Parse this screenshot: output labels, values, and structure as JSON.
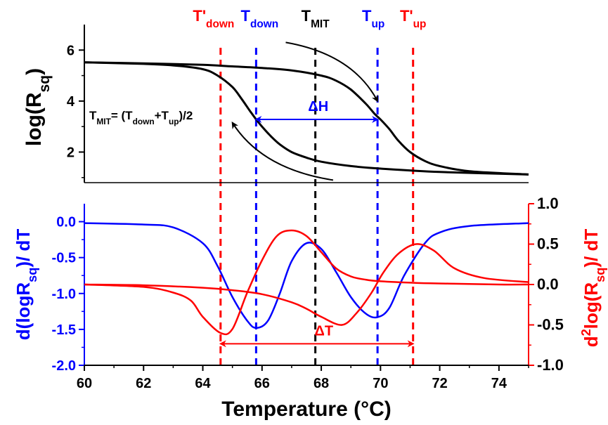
{
  "chart_data": [
    {
      "type": "line",
      "panel": "top",
      "ylabel": {
        "base": "log(R",
        "sub": "sq",
        "end": ")"
      },
      "xlim": [
        60,
        75
      ],
      "ylim": [
        0.8,
        7.0
      ],
      "yticks": [
        2,
        4,
        6
      ],
      "series": [
        {
          "x": [
            60,
            62,
            63,
            64,
            64.5,
            65,
            65.3,
            65.6,
            65.8,
            66,
            66.3,
            66.6,
            67,
            67.5,
            68,
            69,
            70,
            72,
            75
          ],
          "y": [
            5.52,
            5.46,
            5.4,
            5.25,
            5.0,
            4.55,
            4.1,
            3.6,
            3.28,
            3.0,
            2.62,
            2.3,
            2.0,
            1.78,
            1.62,
            1.45,
            1.35,
            1.22,
            1.12
          ]
        },
        {
          "x": [
            60,
            62,
            64,
            65,
            66,
            67,
            68,
            68.5,
            69,
            69.5,
            69.8,
            70,
            70.3,
            70.6,
            71,
            71.5,
            72,
            73,
            75
          ],
          "y": [
            5.52,
            5.48,
            5.42,
            5.36,
            5.3,
            5.2,
            5.0,
            4.8,
            4.45,
            3.9,
            3.5,
            3.28,
            2.9,
            2.45,
            2.0,
            1.65,
            1.45,
            1.25,
            1.12
          ]
        }
      ],
      "arrows": [
        {
          "from": [
            66.8,
            6.3
          ],
          "to": [
            69.9,
            4.0
          ],
          "color": "#000000"
        },
        {
          "from": [
            68.4,
            0.9
          ],
          "to": [
            65.0,
            3.15
          ],
          "color": "#000000"
        },
        {
          "from": [
            65.8,
            3.28
          ],
          "to": [
            69.9,
            3.28
          ],
          "color": "#0000ff",
          "label": "ΔH"
        }
      ],
      "annotation": {
        "pre": "T",
        "sub1": "MIT",
        "mid1": "= (T",
        "sub2": "down",
        "mid2": "+T",
        "sub3": "up",
        "end": ")/2"
      }
    },
    {
      "type": "line",
      "panel": "bottom",
      "xlabel": "Temperature (°C)",
      "xlim": [
        60,
        75
      ],
      "xticks": [
        60,
        62,
        64,
        66,
        68,
        70,
        72,
        74
      ],
      "ylabel_left": {
        "pre": "d(logR",
        "sub": "sq",
        "end": ")/ dT"
      },
      "ylabel_right": {
        "pre": "d",
        "sup": "2",
        "mid": "log(R",
        "sub": "sq",
        "end": ")/ dT"
      },
      "ylim_left": [
        -2.0,
        0.25
      ],
      "yticks_left": [
        "0.0",
        "-0.5",
        "-1.0",
        "-1.5",
        "-2.0"
      ],
      "ylim_right": [
        -1.0,
        1.0
      ],
      "yticks_right": [
        "1.0",
        "0.5",
        "0.0",
        "-0.5",
        "-1.0"
      ],
      "series": [
        {
          "axis": "left",
          "color": "#0000ff",
          "x": [
            60,
            62,
            63,
            64,
            64.5,
            65,
            65.5,
            65.8,
            66.2,
            66.6,
            67,
            67.5,
            68,
            68.5,
            69,
            69.5,
            69.9,
            70.3,
            70.8,
            71.5,
            72,
            73,
            75
          ],
          "y": [
            -0.02,
            -0.04,
            -0.08,
            -0.3,
            -0.62,
            -1.05,
            -1.38,
            -1.48,
            -1.38,
            -1.0,
            -0.55,
            -0.3,
            -0.38,
            -0.7,
            -1.05,
            -1.28,
            -1.33,
            -1.2,
            -0.75,
            -0.3,
            -0.15,
            -0.06,
            -0.02
          ]
        },
        {
          "axis": "right",
          "color": "#ff0000",
          "x": [
            60,
            62,
            63,
            63.6,
            64,
            64.6,
            65,
            65.5,
            66,
            66.5,
            67,
            67.5,
            68,
            68.5,
            69,
            69.5,
            70,
            71.2,
            72.5,
            74,
            75
          ],
          "y": [
            0.0,
            -0.03,
            -0.1,
            -0.2,
            -0.4,
            -0.6,
            -0.55,
            -0.1,
            0.3,
            0.6,
            0.67,
            0.6,
            0.4,
            0.2,
            0.1,
            0.06,
            0.04,
            0.02,
            0.01,
            0.0,
            0.0
          ]
        },
        {
          "axis": "right",
          "color": "#ff0000",
          "x": [
            60,
            62,
            64,
            65,
            66,
            67,
            67.5,
            68,
            68.7,
            69.2,
            69.7,
            70.1,
            70.6,
            71.2,
            71.8,
            72.5,
            73.5,
            75
          ],
          "y": [
            0.0,
            -0.01,
            -0.04,
            -0.07,
            -0.12,
            -0.22,
            -0.3,
            -0.4,
            -0.5,
            -0.35,
            -0.1,
            0.15,
            0.38,
            0.5,
            0.42,
            0.2,
            0.08,
            0.03
          ]
        }
      ],
      "arrow": {
        "from": 64.6,
        "to": 71.1,
        "value": -1.7,
        "axis": "left",
        "color": "#ff0000",
        "label": "ΔT"
      }
    }
  ],
  "vlines": [
    {
      "x": 64.6,
      "color": "#ff0000",
      "label": {
        "base": "T'",
        "sub": "down"
      }
    },
    {
      "x": 65.8,
      "color": "#0000ff",
      "label": {
        "base": "T",
        "sub": "down"
      }
    },
    {
      "x": 67.8,
      "color": "#000000",
      "label": {
        "base": "T",
        "sub": "MIT"
      }
    },
    {
      "x": 69.9,
      "color": "#0000ff",
      "label": {
        "base": "T",
        "sub": "up"
      }
    },
    {
      "x": 71.1,
      "color": "#ff0000",
      "label": {
        "base": "T'",
        "sub": "up"
      }
    }
  ]
}
